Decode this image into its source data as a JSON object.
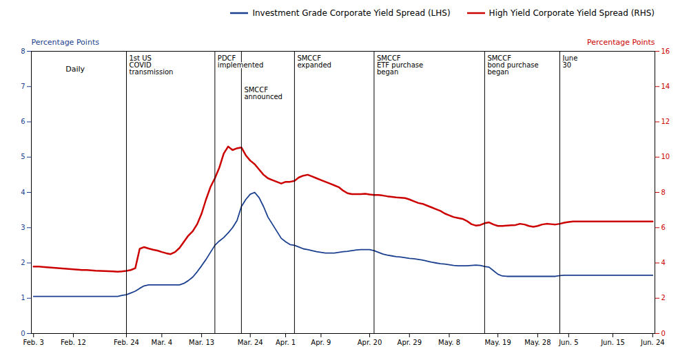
{
  "chart_data": {
    "type": "line",
    "ylabel": "Percentage Points",
    "y2label": "Percentage Points",
    "categories": [
      "Feb. 3",
      null,
      null,
      null,
      null,
      null,
      null,
      null,
      null,
      "Feb. 12",
      null,
      null,
      null,
      null,
      null,
      null,
      null,
      null,
      null,
      null,
      null,
      "Feb. 24",
      null,
      null,
      null,
      null,
      null,
      null,
      null,
      "Mar. 4",
      null,
      null,
      null,
      null,
      null,
      null,
      null,
      null,
      "Mar. 13",
      null,
      null,
      null,
      null,
      null,
      null,
      null,
      null,
      null,
      null,
      "Mar. 24",
      null,
      null,
      null,
      null,
      null,
      null,
      null,
      "Apr. 1",
      null,
      null,
      null,
      null,
      null,
      null,
      null,
      "Apr. 9",
      null,
      null,
      null,
      null,
      null,
      null,
      null,
      null,
      null,
      null,
      "Apr. 20",
      null,
      null,
      null,
      null,
      null,
      null,
      null,
      null,
      "Apr. 29",
      null,
      null,
      null,
      null,
      null,
      null,
      null,
      null,
      "May. 8",
      null,
      null,
      null,
      null,
      null,
      null,
      null,
      null,
      null,
      null,
      "May. 19",
      null,
      null,
      null,
      null,
      null,
      null,
      null,
      null,
      "May. 28",
      null,
      null,
      null,
      null,
      null,
      null,
      "Jun. 5",
      null,
      null,
      null,
      null,
      null,
      null,
      null,
      null,
      null,
      "Jun. 15",
      null,
      null,
      null,
      null,
      null,
      null,
      null,
      null,
      "Jun. 24"
    ],
    "series": [
      {
        "name": "Investment Grade Corporate Yield Spread (LHS)",
        "color": "#1a3f8f",
        "values": [
          1.05,
          1.05,
          1.05,
          1.05,
          1.05,
          1.05,
          1.05,
          1.05,
          1.05,
          1.05,
          1.05,
          1.05,
          1.05,
          1.05,
          1.05,
          1.05,
          1.05,
          1.05,
          1.05,
          1.05,
          1.08,
          1.1,
          1.15,
          1.2,
          1.28,
          1.35,
          1.38,
          1.38,
          1.38,
          1.38,
          1.38,
          1.38,
          1.38,
          1.38,
          1.42,
          1.5,
          1.6,
          1.75,
          1.92,
          2.1,
          2.3,
          2.5,
          2.62,
          2.72,
          2.85,
          3.0,
          3.2,
          3.6,
          3.8,
          3.95,
          4.0,
          3.85,
          3.6,
          3.3,
          3.1,
          2.9,
          2.7,
          2.6,
          2.52,
          2.5,
          2.45,
          2.4,
          2.38,
          2.35,
          2.32,
          2.3,
          2.28,
          2.28,
          2.28,
          2.3,
          2.32,
          2.33,
          2.35,
          2.37,
          2.38,
          2.38,
          2.38,
          2.35,
          2.3,
          2.25,
          2.22,
          2.2,
          2.18,
          2.17,
          2.15,
          2.13,
          2.12,
          2.1,
          2.08,
          2.05,
          2.02,
          2.0,
          1.98,
          1.97,
          1.95,
          1.93,
          1.92,
          1.92,
          1.92,
          1.93,
          1.94,
          1.93,
          1.9,
          1.88,
          1.78,
          1.68,
          1.63,
          1.62,
          1.62,
          1.62,
          1.62,
          1.62,
          1.62,
          1.62,
          1.62,
          1.62,
          1.62,
          1.62,
          1.62,
          1.64,
          1.65,
          1.65,
          1.65,
          1.65,
          1.65,
          1.65,
          1.65,
          1.65,
          1.65,
          1.65,
          1.65,
          1.65,
          1.65,
          1.65,
          1.65,
          1.65,
          1.65,
          1.65,
          1.65,
          1.65,
          1.65
        ]
      },
      {
        "name": "High Yield Corporate Yield Spread (RHS)",
        "color": "#cc0000",
        "axis": "y2",
        "values": [
          3.8,
          3.8,
          3.78,
          3.76,
          3.74,
          3.72,
          3.7,
          3.68,
          3.66,
          3.64,
          3.62,
          3.6,
          3.6,
          3.58,
          3.56,
          3.55,
          3.54,
          3.53,
          3.52,
          3.5,
          3.52,
          3.55,
          3.6,
          3.7,
          4.8,
          4.9,
          4.82,
          4.75,
          4.7,
          4.62,
          4.55,
          4.5,
          4.62,
          4.85,
          5.2,
          5.55,
          5.8,
          6.2,
          6.8,
          7.6,
          8.3,
          8.8,
          9.4,
          10.2,
          10.6,
          10.4,
          10.5,
          10.55,
          10.1,
          9.8,
          9.6,
          9.3,
          9.0,
          8.8,
          8.7,
          8.6,
          8.5,
          8.6,
          8.6,
          8.65,
          8.85,
          8.95,
          9.0,
          8.9,
          8.8,
          8.7,
          8.6,
          8.5,
          8.4,
          8.3,
          8.1,
          7.95,
          7.9,
          7.9,
          7.9,
          7.92,
          7.88,
          7.85,
          7.85,
          7.82,
          7.78,
          7.75,
          7.72,
          7.7,
          7.68,
          7.6,
          7.5,
          7.4,
          7.35,
          7.25,
          7.15,
          7.05,
          6.95,
          6.8,
          6.7,
          6.6,
          6.55,
          6.5,
          6.38,
          6.2,
          6.12,
          6.15,
          6.25,
          6.3,
          6.18,
          6.1,
          6.1,
          6.12,
          6.14,
          6.15,
          6.22,
          6.18,
          6.1,
          6.05,
          6.1,
          6.18,
          6.22,
          6.2,
          6.18,
          6.22,
          6.28,
          6.32,
          6.35,
          6.35,
          6.35,
          6.35,
          6.35,
          6.35,
          6.35,
          6.35,
          6.35,
          6.35,
          6.35,
          6.35,
          6.35,
          6.35,
          6.35,
          6.35,
          6.35,
          6.35,
          6.35
        ]
      }
    ],
    "ylim": [
      0,
      8
    ],
    "yticks": [
      0,
      1,
      2,
      3,
      4,
      5,
      6,
      7,
      8
    ],
    "y2lim": [
      0,
      16
    ],
    "y2ticks": [
      0,
      2,
      4,
      6,
      8,
      10,
      12,
      14,
      16
    ],
    "legend": "upper right",
    "annotations": [
      {
        "text": "Daily"
      }
    ],
    "vlines": [
      {
        "x": 21,
        "label": "1st US\nCOVID\ntransmission"
      },
      {
        "x": 41,
        "label": "PDCF\nimplemented"
      },
      {
        "x": 47,
        "label": "SMCCF\nannounced"
      },
      {
        "x": 59,
        "label": "SMCCF\nexpanded"
      },
      {
        "x": 77,
        "label": "SMCCF\nETF purchase\nbegan"
      },
      {
        "x": 102,
        "label": "SMCCF\nbond purchase\nbegan"
      },
      {
        "x": 119,
        "label": "June\n30"
      }
    ]
  }
}
